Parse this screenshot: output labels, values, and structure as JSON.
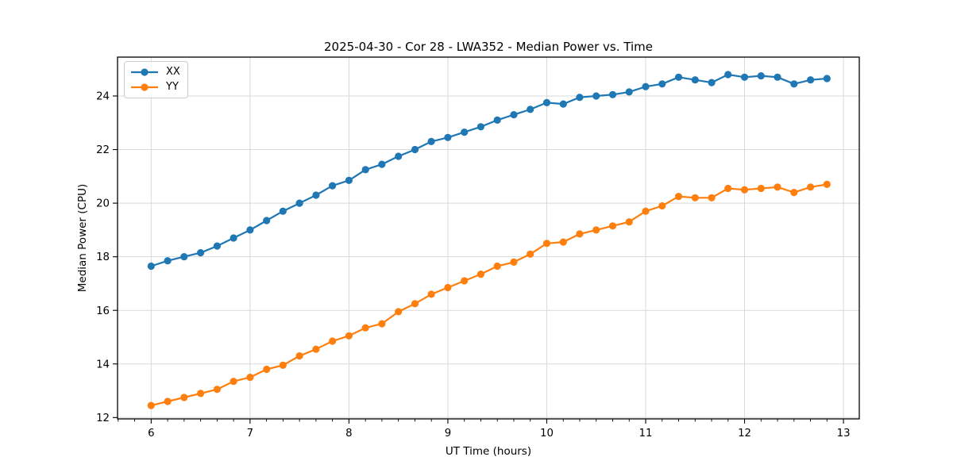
{
  "title": "2025-04-30 - Cor 28 - LWA352 - Median Power vs. Time",
  "chart_data": {
    "type": "line",
    "title": "2025-04-30 - Cor 28 - LWA352 - Median Power vs. Time",
    "xlabel": "UT Time (hours)",
    "ylabel": "Median Power (CPU)",
    "xlim": [
      5.66,
      13.16
    ],
    "ylim": [
      11.95,
      25.45
    ],
    "xticks": [
      6,
      7,
      8,
      9,
      10,
      11,
      12,
      13
    ],
    "yticks": [
      12,
      14,
      16,
      18,
      20,
      22,
      24
    ],
    "x_minor_step": 0.1667,
    "grid": true,
    "grid_color": "#d9d9d9",
    "spine_color": "#000000",
    "legend_position": "upper-left",
    "marker": "circle",
    "x": [
      6.0,
      6.167,
      6.333,
      6.5,
      6.667,
      6.833,
      7.0,
      7.167,
      7.333,
      7.5,
      7.667,
      7.833,
      8.0,
      8.167,
      8.333,
      8.5,
      8.667,
      8.833,
      9.0,
      9.167,
      9.333,
      9.5,
      9.667,
      9.833,
      10.0,
      10.167,
      10.333,
      10.5,
      10.667,
      10.833,
      11.0,
      11.167,
      11.333,
      11.5,
      11.667,
      11.833,
      12.0,
      12.167,
      12.333,
      12.5,
      12.667,
      12.833
    ],
    "series": [
      {
        "name": "XX",
        "color": "#1f77b4",
        "values": [
          17.65,
          17.85,
          18.0,
          18.15,
          18.4,
          18.7,
          19.0,
          19.35,
          19.7,
          20.0,
          20.3,
          20.65,
          20.85,
          21.25,
          21.45,
          21.75,
          22.0,
          22.3,
          22.45,
          22.65,
          22.85,
          23.1,
          23.3,
          23.5,
          23.75,
          23.7,
          23.95,
          24.0,
          24.05,
          24.15,
          24.35,
          24.45,
          24.7,
          24.6,
          24.5,
          24.8,
          24.7,
          24.75,
          24.7,
          24.45,
          24.6,
          24.65
        ]
      },
      {
        "name": "YY",
        "color": "#ff7f0e",
        "values": [
          12.45,
          12.6,
          12.75,
          12.9,
          13.05,
          13.35,
          13.5,
          13.8,
          13.95,
          14.3,
          14.55,
          14.85,
          15.05,
          15.35,
          15.5,
          15.95,
          16.25,
          16.6,
          16.85,
          17.1,
          17.35,
          17.65,
          17.8,
          18.1,
          18.5,
          18.55,
          18.85,
          19.0,
          19.15,
          19.3,
          19.7,
          19.9,
          20.25,
          20.2,
          20.2,
          20.55,
          20.5,
          20.55,
          20.6,
          20.4,
          20.6,
          20.7
        ]
      }
    ]
  }
}
